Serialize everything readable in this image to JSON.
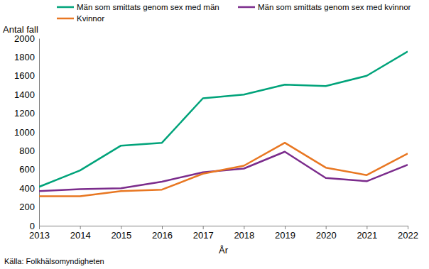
{
  "chart_data": {
    "type": "line",
    "x_label": "År",
    "y_label": "Antal fall",
    "source": "Källa: Folkhälsomyndigheten",
    "x": [
      2013,
      2014,
      2015,
      2016,
      2017,
      2018,
      2019,
      2020,
      2021,
      2022
    ],
    "series": [
      {
        "name": "Män som smittats genom sex med män",
        "color": "#00a37a",
        "values": [
          415,
          590,
          855,
          885,
          1360,
          1400,
          1505,
          1490,
          1600,
          1860
        ]
      },
      {
        "name": "Män som smittats genom sex med kvinnor",
        "color": "#7b2c8c",
        "values": [
          370,
          390,
          400,
          470,
          570,
          610,
          790,
          510,
          475,
          650
        ]
      },
      {
        "name": "Kvinnor",
        "color": "#e87722",
        "values": [
          315,
          315,
          370,
          385,
          555,
          640,
          885,
          620,
          540,
          770
        ]
      }
    ],
    "xlim": [
      2013,
      2022
    ],
    "xticks": [
      2013,
      2014,
      2015,
      2016,
      2017,
      2018,
      2019,
      2020,
      2021,
      2022
    ],
    "ylim": [
      0,
      2000
    ],
    "yticks": [
      0,
      200,
      400,
      600,
      800,
      1000,
      1200,
      1400,
      1600,
      1800,
      2000
    ],
    "grid": false,
    "legend": "top"
  }
}
